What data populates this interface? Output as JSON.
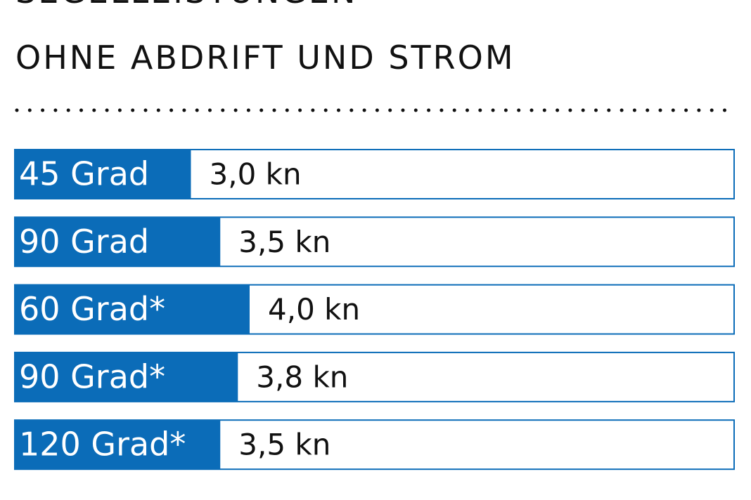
{
  "chart_data": {
    "type": "bar",
    "orientation": "horizontal",
    "title": "SEGELLEISTUNGEN",
    "subtitle": "OHNE ABDRIFT UND STROM",
    "categories": [
      "45 Grad",
      "90 Grad",
      "60 Grad*",
      "90 Grad*",
      "120 Grad*"
    ],
    "values": [
      3.0,
      3.5,
      4.0,
      3.8,
      3.5
    ],
    "value_labels": [
      "3,0 kn",
      "3,5 kn",
      "4,0 kn",
      "3,8 kn",
      "3,5 kn"
    ],
    "color": "#0b6cb8"
  }
}
